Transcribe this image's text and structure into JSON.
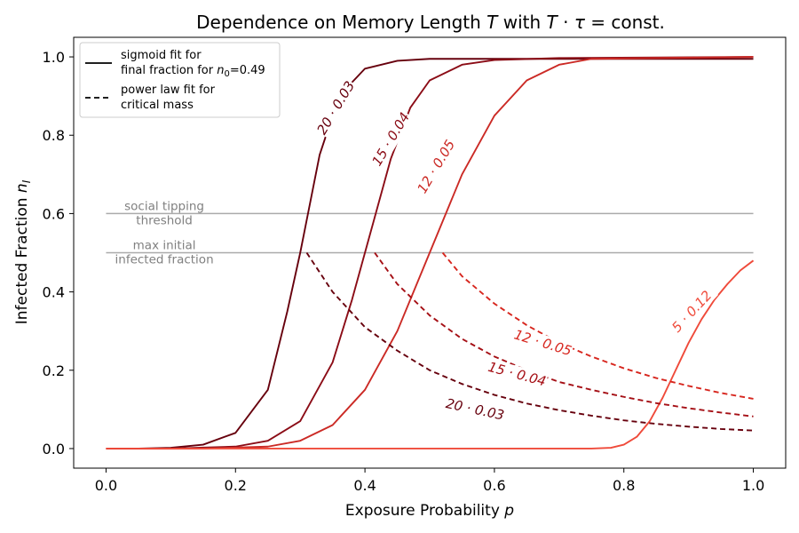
{
  "chart_data": {
    "type": "line",
    "title": "Dependence on Memory Length T with T · τ = const.",
    "xlabel": "Exposure Probability p",
    "ylabel": "Infected Fraction n_I",
    "xlim": [
      -0.05,
      1.05
    ],
    "ylim": [
      -0.05,
      1.05
    ],
    "x_ticks": [
      "0.0",
      "0.2",
      "0.4",
      "0.6",
      "0.8",
      "1.0"
    ],
    "y_ticks": [
      "0.0",
      "0.2",
      "0.4",
      "0.6",
      "0.8",
      "1.0"
    ],
    "grid": false,
    "legend": {
      "position": "top-left",
      "entries": [
        {
          "style": "solid",
          "line1": "sigmoid fit for",
          "line2": "final fraction for n₀=0.49"
        },
        {
          "style": "dashed",
          "line1": "power law fit for",
          "line2": "critical mass"
        }
      ]
    },
    "reference_lines": [
      {
        "y": 0.6,
        "x_range": [
          0.0,
          1.0
        ],
        "color": "#aaaaaa",
        "label_line1": "social tipping",
        "label_line2": "threshold"
      },
      {
        "y": 0.5,
        "x_range": [
          0.0,
          1.0
        ],
        "color": "#aaaaaa",
        "label_line1": "max initial",
        "label_line2": "infected fraction"
      }
    ],
    "series": [
      {
        "name": "20 · 0.03",
        "color": "#67000d",
        "style": "solid",
        "points": [
          [
            0.0,
            0.0
          ],
          [
            0.05,
            0.0
          ],
          [
            0.1,
            0.002
          ],
          [
            0.15,
            0.01
          ],
          [
            0.2,
            0.04
          ],
          [
            0.25,
            0.15
          ],
          [
            0.28,
            0.35
          ],
          [
            0.3,
            0.5
          ],
          [
            0.33,
            0.75
          ],
          [
            0.36,
            0.9
          ],
          [
            0.4,
            0.97
          ],
          [
            0.45,
            0.99
          ],
          [
            0.5,
            0.995
          ],
          [
            0.6,
            0.995
          ],
          [
            1.0,
            0.995
          ]
        ],
        "label": {
          "text": "20 · 0.03",
          "x": 0.355,
          "y": 0.87,
          "angle": -59
        }
      },
      {
        "name": "15 · 0.04",
        "color": "#8b0c16",
        "style": "solid",
        "points": [
          [
            0.0,
            0.0
          ],
          [
            0.1,
            0.0
          ],
          [
            0.2,
            0.005
          ],
          [
            0.25,
            0.02
          ],
          [
            0.3,
            0.07
          ],
          [
            0.35,
            0.22
          ],
          [
            0.38,
            0.38
          ],
          [
            0.41,
            0.56
          ],
          [
            0.44,
            0.74
          ],
          [
            0.47,
            0.87
          ],
          [
            0.5,
            0.94
          ],
          [
            0.55,
            0.98
          ],
          [
            0.6,
            0.992
          ],
          [
            0.7,
            0.997
          ],
          [
            1.0,
            1.0
          ]
        ],
        "label": {
          "text": "15 · 0.04",
          "x": 0.44,
          "y": 0.79,
          "angle": -59
        }
      },
      {
        "name": "12 · 0.05",
        "color": "#cb2a25",
        "style": "solid",
        "points": [
          [
            0.0,
            0.0
          ],
          [
            0.15,
            0.0
          ],
          [
            0.25,
            0.005
          ],
          [
            0.3,
            0.02
          ],
          [
            0.35,
            0.06
          ],
          [
            0.4,
            0.15
          ],
          [
            0.45,
            0.3
          ],
          [
            0.5,
            0.5
          ],
          [
            0.55,
            0.7
          ],
          [
            0.6,
            0.85
          ],
          [
            0.65,
            0.94
          ],
          [
            0.7,
            0.98
          ],
          [
            0.75,
            0.995
          ],
          [
            1.0,
            1.0
          ]
        ],
        "label": {
          "text": "12 · 0.05",
          "x": 0.51,
          "y": 0.72,
          "angle": -59
        }
      },
      {
        "name": "5 · 0.12",
        "color": "#ef4a3a",
        "style": "solid",
        "points": [
          [
            0.0,
            0.0
          ],
          [
            0.75,
            0.0
          ],
          [
            0.78,
            0.002
          ],
          [
            0.8,
            0.01
          ],
          [
            0.82,
            0.03
          ],
          [
            0.84,
            0.07
          ],
          [
            0.86,
            0.13
          ],
          [
            0.88,
            0.2
          ],
          [
            0.9,
            0.27
          ],
          [
            0.92,
            0.33
          ],
          [
            0.94,
            0.38
          ],
          [
            0.96,
            0.42
          ],
          [
            0.98,
            0.455
          ],
          [
            1.0,
            0.48
          ]
        ],
        "label": {
          "text": "5 · 0.12",
          "x": 0.905,
          "y": 0.35,
          "angle": -47
        }
      },
      {
        "name": "20 · 0.03 critical mass",
        "color": "#67000d",
        "style": "dashed",
        "points": [
          [
            0.31,
            0.5
          ],
          [
            0.35,
            0.4
          ],
          [
            0.4,
            0.31
          ],
          [
            0.45,
            0.25
          ],
          [
            0.5,
            0.2
          ],
          [
            0.55,
            0.165
          ],
          [
            0.6,
            0.137
          ],
          [
            0.65,
            0.115
          ],
          [
            0.7,
            0.098
          ],
          [
            0.75,
            0.084
          ],
          [
            0.8,
            0.072
          ],
          [
            0.85,
            0.063
          ],
          [
            0.9,
            0.056
          ],
          [
            0.95,
            0.05
          ],
          [
            1.0,
            0.046
          ]
        ],
        "label": {
          "text": "20 · 0.03",
          "x": 0.57,
          "y": 0.1,
          "angle": 12
        }
      },
      {
        "name": "15 · 0.04 critical mass",
        "color": "#a50f15",
        "style": "dashed",
        "points": [
          [
            0.415,
            0.5
          ],
          [
            0.45,
            0.42
          ],
          [
            0.5,
            0.34
          ],
          [
            0.55,
            0.28
          ],
          [
            0.6,
            0.235
          ],
          [
            0.65,
            0.2
          ],
          [
            0.7,
            0.17
          ],
          [
            0.75,
            0.15
          ],
          [
            0.8,
            0.132
          ],
          [
            0.85,
            0.116
          ],
          [
            0.9,
            0.103
          ],
          [
            0.95,
            0.092
          ],
          [
            1.0,
            0.082
          ]
        ],
        "label": {
          "text": "15 · 0.04",
          "x": 0.635,
          "y": 0.19,
          "angle": 15
        }
      },
      {
        "name": "12 · 0.05 critical mass",
        "color": "#d7261e",
        "style": "dashed",
        "points": [
          [
            0.52,
            0.5
          ],
          [
            0.55,
            0.44
          ],
          [
            0.6,
            0.37
          ],
          [
            0.65,
            0.315
          ],
          [
            0.7,
            0.27
          ],
          [
            0.75,
            0.235
          ],
          [
            0.8,
            0.205
          ],
          [
            0.85,
            0.18
          ],
          [
            0.9,
            0.16
          ],
          [
            0.95,
            0.142
          ],
          [
            1.0,
            0.127
          ]
        ],
        "label": {
          "text": "12 · 0.05",
          "x": 0.675,
          "y": 0.27,
          "angle": 17
        }
      }
    ]
  }
}
